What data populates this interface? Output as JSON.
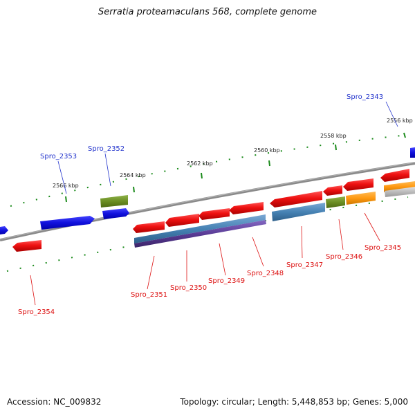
{
  "title": "Serratia proteamaculans 568, complete genome",
  "footer": {
    "accession": "Accession: NC_009832",
    "summary": "Topology: circular; Length: 5,448,853 bp; Genes: 5,000"
  },
  "colors": {
    "backbone": "#8a8a8a",
    "tick": "#1a8a1a",
    "label_forward": "#2233cc",
    "label_reverse": "#dd1111",
    "gene_red": "#ee1111",
    "gene_blue": "#1111dd",
    "gene_olive": "#6b8e23",
    "gene_orange": "#ff9911",
    "track_steelblue": "#4682b4",
    "track_slateblue": "#5a3c96",
    "track_gray": "#bbbbbb"
  },
  "ticks": [
    "2556 kbp",
    "2558 kbp",
    "2560 kbp",
    "2562 kbp",
    "2564 kbp",
    "2566 kbp"
  ],
  "gene_labels": [
    {
      "name": "Spro_2343",
      "strand": "forward"
    },
    {
      "name": "Spro_2352",
      "strand": "forward"
    },
    {
      "name": "Spro_2353",
      "strand": "forward"
    },
    {
      "name": "Spro_2345",
      "strand": "reverse"
    },
    {
      "name": "Spro_2346",
      "strand": "reverse"
    },
    {
      "name": "Spro_2347",
      "strand": "reverse"
    },
    {
      "name": "Spro_2348",
      "strand": "reverse"
    },
    {
      "name": "Spro_2349",
      "strand": "reverse"
    },
    {
      "name": "Spro_2350",
      "strand": "reverse"
    },
    {
      "name": "Spro_2351",
      "strand": "reverse"
    },
    {
      "name": "Spro_2354",
      "strand": "reverse"
    }
  ]
}
